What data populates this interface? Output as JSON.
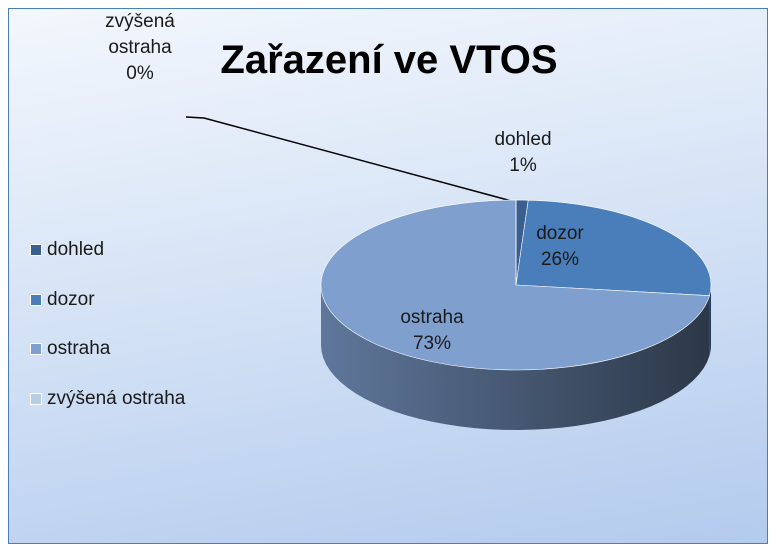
{
  "chart_data": {
    "type": "pie",
    "title": "Zařazení ve VTOS",
    "categories": [
      "dohled",
      "dozor",
      "ostraha",
      "zvýšená ostraha"
    ],
    "values": [
      1,
      26,
      73,
      0
    ],
    "value_labels": [
      "1%",
      "26%",
      "73%",
      "0%"
    ],
    "colors": [
      "#3b5e91",
      "#4a7ebb",
      "#7f9fcf",
      "#b9cde5"
    ],
    "legend": "left"
  }
}
